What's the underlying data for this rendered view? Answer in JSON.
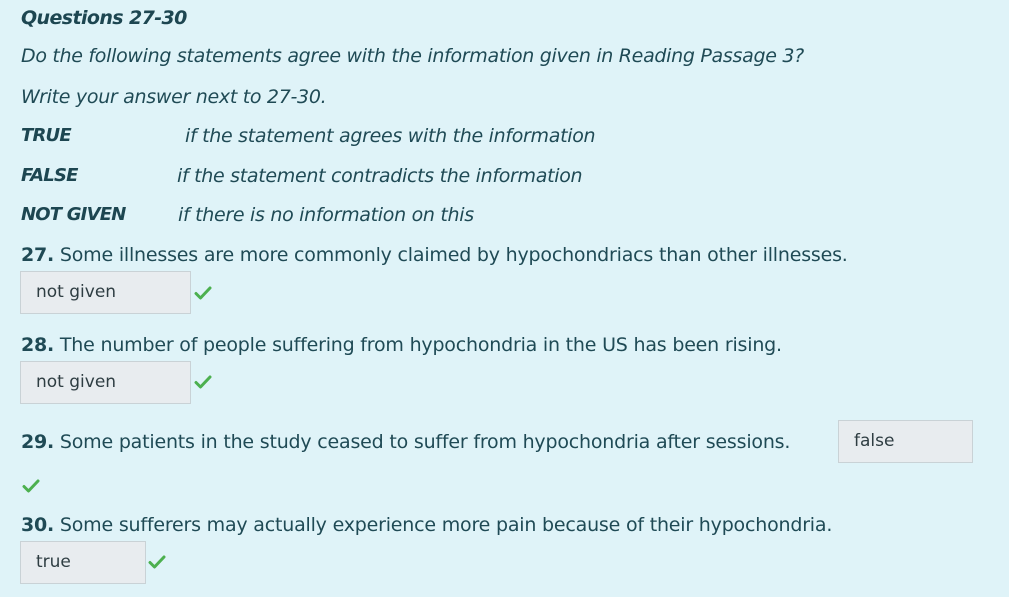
{
  "heading": "Questions 27-30",
  "instructions": [
    "Do the following statements agree with the information given in Reading Passage 3?",
    "Write your answer next to 27-30."
  ],
  "legend": [
    {
      "key": "TRUE",
      "desc": "if the statement agrees with the information"
    },
    {
      "key": "FALSE",
      "desc": "if the statement contradicts the information"
    },
    {
      "key": "NOT GIVEN",
      "desc": "if there is no information on this"
    }
  ],
  "questions": [
    {
      "number": "27.",
      "text": " Some illnesses are more commonly claimed by hypochondriacs  than  other illnesses.",
      "answer": "not given",
      "status": "correct"
    },
    {
      "number": "28.",
      "text": " The number of people suffering from hypochondria in the US has been rising.",
      "answer": "not given",
      "status": "correct"
    },
    {
      "number": "29.",
      "text": " Some patients in the study ceased to suffer from hypochondria after sessions.",
      "answer": "false",
      "status": "correct"
    },
    {
      "number": "30.",
      "text": " Some sufferers may actually experience more pain because of their hypochondria.",
      "answer": "true",
      "status": "correct"
    }
  ],
  "colors": {
    "background": "#dff3f8",
    "text": "#1f4a55",
    "check": "#4cb04f",
    "answer_box": "#e8ecef"
  },
  "icons": {
    "correct": "check-icon"
  }
}
